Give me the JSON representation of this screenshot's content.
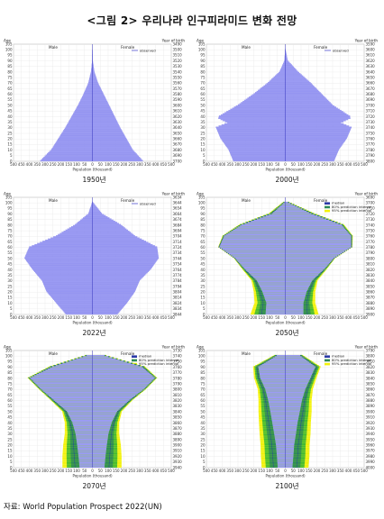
{
  "title": "<그림 2> 우리나라 인구피라미드 변화 전망",
  "source": "자료: World Population Prospect 2022(UN)",
  "colors": {
    "observed": "#9b9bf3",
    "observed_line": "#5a5ad8",
    "median": "#2b3aa6",
    "pi80": "#2e8b57",
    "pi95": "#f2f20a",
    "green_band": "#44bb33"
  },
  "chart_data": [
    {
      "type": "area",
      "year_label": "1950년",
      "mode": "observed",
      "birth_year_top": 1850,
      "left_header": "Male",
      "right_header": "Female",
      "age_header": "Age",
      "birth_header": "Year of birth",
      "xlabel": "Population (thousand)",
      "xlim": [
        -500,
        500
      ],
      "legend": [
        "observed"
      ],
      "age_groups": [
        0,
        10,
        20,
        30,
        40,
        50,
        60,
        70,
        80,
        90,
        100
      ],
      "male": [
        330,
        260,
        215,
        170,
        130,
        90,
        55,
        25,
        8,
        1,
        0
      ],
      "female": [
        320,
        255,
        215,
        175,
        140,
        105,
        70,
        35,
        12,
        2,
        0
      ]
    },
    {
      "type": "area",
      "year_label": "2000년",
      "mode": "observed",
      "birth_year_top": 1900,
      "left_header": "Male",
      "right_header": "Female",
      "age_header": "Age",
      "birth_header": "Year of birth",
      "xlabel": "Population (thousand)",
      "xlim": [
        -500,
        500
      ],
      "legend": [
        "observed"
      ],
      "age_groups": [
        0,
        10,
        20,
        30,
        40,
        50,
        60,
        70,
        80,
        90,
        100
      ],
      "male": [
        330,
        360,
        410,
        440,
        420,
        300,
        200,
        110,
        35,
        5,
        0
      ],
      "female": [
        310,
        340,
        390,
        420,
        410,
        300,
        230,
        160,
        80,
        15,
        1
      ]
    },
    {
      "type": "area",
      "year_label": "2022년",
      "mode": "observed",
      "birth_year_top": 1922,
      "left_header": "Male",
      "right_header": "Female",
      "age_header": "Age",
      "birth_header": "Year of birth",
      "xlabel": "Population (thousand)",
      "xlim": [
        -500,
        500
      ],
      "legend": [
        "observed"
      ],
      "age_groups": [
        0,
        10,
        20,
        30,
        40,
        50,
        60,
        70,
        80,
        90,
        100
      ],
      "male": [
        170,
        230,
        290,
        320,
        380,
        430,
        400,
        230,
        110,
        25,
        1
      ],
      "female": [
        160,
        220,
        270,
        300,
        370,
        420,
        410,
        270,
        180,
        60,
        4
      ]
    },
    {
      "type": "area",
      "year_label": "2050년",
      "mode": "projection",
      "birth_year_top": 1950,
      "left_header": "Male",
      "right_header": "Female",
      "age_header": "Age",
      "birth_header": "Year of birth",
      "xlabel": "Population (thousand)",
      "xlim": [
        -500,
        500
      ],
      "legend": [
        "median",
        "80% prediction interval",
        "95% prediction interval"
      ],
      "age_groups": [
        0,
        10,
        20,
        30,
        40,
        50,
        60,
        70,
        80,
        90,
        100
      ],
      "male": [
        150,
        140,
        160,
        190,
        260,
        320,
        420,
        390,
        280,
        90,
        8
      ],
      "female": [
        140,
        135,
        150,
        180,
        250,
        310,
        420,
        420,
        360,
        170,
        20
      ],
      "spread": [
        70,
        55,
        40,
        25,
        12,
        6,
        5,
        8,
        12,
        15,
        8
      ]
    },
    {
      "type": "area",
      "year_label": "2070년",
      "mode": "projection",
      "birth_year_top": 1970,
      "left_header": "Male",
      "right_header": "Female",
      "age_header": "Age",
      "birth_header": "Year of birth",
      "xlabel": "Population (thousand)",
      "xlim": [
        -500,
        500
      ],
      "legend": [
        "median",
        "80% prediction interval",
        "95% prediction interval"
      ],
      "age_groups": [
        0,
        10,
        20,
        30,
        40,
        50,
        60,
        70,
        80,
        90,
        100
      ],
      "male": [
        110,
        115,
        120,
        125,
        140,
        170,
        250,
        330,
        400,
        260,
        40
      ],
      "female": [
        105,
        110,
        115,
        120,
        135,
        165,
        240,
        330,
        400,
        320,
        80
      ],
      "spread": [
        80,
        75,
        65,
        50,
        35,
        22,
        14,
        10,
        10,
        14,
        10
      ]
    },
    {
      "type": "area",
      "year_label": "2100년",
      "mode": "projection",
      "birth_year_top": 2000,
      "left_header": "Male",
      "right_header": "Female",
      "age_header": "Age",
      "birth_header": "Year of birth",
      "xlabel": "Population (thousand)",
      "xlim": [
        -500,
        500
      ],
      "legend": [
        "median",
        "80% prediction interval",
        "95% prediction interval"
      ],
      "age_groups": [
        0,
        10,
        20,
        30,
        40,
        50,
        60,
        70,
        80,
        90,
        100
      ],
      "male": [
        75,
        80,
        85,
        95,
        105,
        115,
        125,
        140,
        170,
        180,
        60
      ],
      "female": [
        72,
        78,
        82,
        92,
        100,
        112,
        122,
        140,
        170,
        200,
        100
      ],
      "spread": [
        75,
        75,
        72,
        68,
        62,
        55,
        45,
        35,
        28,
        24,
        14
      ]
    }
  ]
}
